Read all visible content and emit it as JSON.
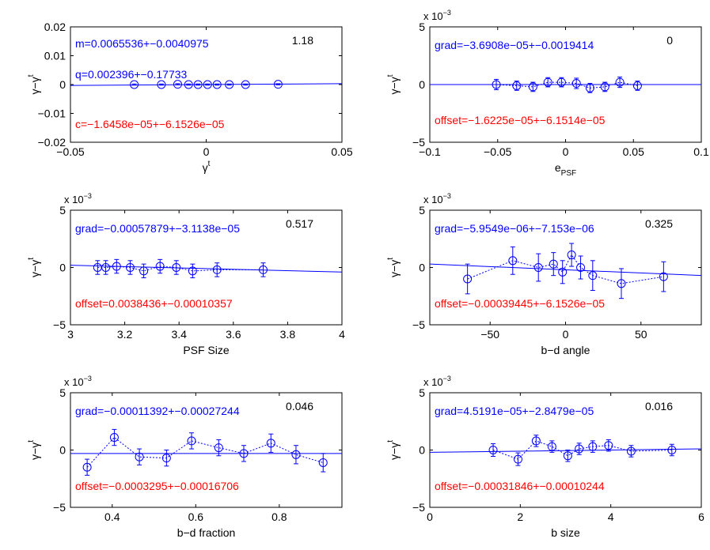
{
  "chart_data": [
    {
      "type": "scatter",
      "xlabel": "γ^t",
      "ylabel": "γ−γ^t",
      "xlim": [
        -0.05,
        0.05
      ],
      "ylim": [
        -0.02,
        0.02
      ],
      "xticks": [
        -0.05,
        0,
        0.05
      ],
      "xtick_labels": [
        "−0.05",
        "0",
        "0.05"
      ],
      "yticks": [
        -0.02,
        -0.01,
        0,
        0.01,
        0.02
      ],
      "ytick_labels": [
        "−0.02",
        "−0.01",
        "0",
        "0.01",
        "0.02"
      ],
      "exponent_label": "",
      "value_label": "1.18",
      "annotations": [
        {
          "text": "m=0.0065536+−0.0040975",
          "color": "#0000ff"
        },
        {
          "text": "q=0.002396+−0.17733",
          "color": "#0000ff"
        },
        {
          "text": "c=−1.6458e−05+−6.1526e−05",
          "color": "#ff0000"
        }
      ],
      "fit_line": {
        "x": [
          -0.05,
          0.05
        ],
        "y": [
          -0.0003,
          0.0003
        ]
      },
      "connect_points": false,
      "points": {
        "x": [
          -0.0265,
          -0.0165,
          -0.0105,
          -0.0065,
          -0.003,
          0.0005,
          0.004,
          0.0085,
          0.0145,
          0.0265
        ],
        "y": [
          0,
          0,
          0.0001,
          0,
          0,
          0,
          0,
          0,
          0,
          0.0001
        ],
        "err": [
          0.0002,
          0.0002,
          0.0002,
          0.0002,
          0.0002,
          0.0002,
          0.0002,
          0.0002,
          0.0002,
          0.0002
        ]
      }
    },
    {
      "type": "scatter",
      "xlabel": "e_PSF",
      "ylabel": "γ−γ^t",
      "xlim": [
        -0.1,
        0.1
      ],
      "ylim": [
        -5,
        5
      ],
      "xticks": [
        -0.1,
        -0.05,
        0,
        0.05,
        0.1
      ],
      "xtick_labels": [
        "−0.1",
        "−0.05",
        "0",
        "0.05",
        "0.1"
      ],
      "yticks": [
        -5,
        0,
        5
      ],
      "ytick_labels": [
        "−5",
        "0",
        "5"
      ],
      "exponent_label": "x 10−3",
      "value_label": "0",
      "annotations": [
        {
          "text": "grad=−3.6908e−05+−0.0019414",
          "color": "#0000ff"
        },
        {
          "text": "offset=−1.6225e−05+−6.1514e−05",
          "color": "#ff0000"
        }
      ],
      "fit_line": {
        "x": [
          -0.1,
          0.1
        ],
        "y": [
          0,
          0
        ]
      },
      "connect_points": true,
      "points": {
        "x": [
          -0.051,
          -0.036,
          -0.024,
          -0.013,
          -0.003,
          0.008,
          0.018,
          0.029,
          0.04,
          0.053
        ],
        "y": [
          0,
          -0.1,
          -0.2,
          0.2,
          0.2,
          0.1,
          -0.3,
          -0.2,
          0.2,
          -0.1
        ],
        "err": [
          0.45,
          0.4,
          0.4,
          0.4,
          0.4,
          0.45,
          0.4,
          0.4,
          0.45,
          0.4
        ]
      }
    },
    {
      "type": "scatter",
      "xlabel": "PSF Size",
      "ylabel": "γ−γ^t",
      "xlim": [
        3,
        4
      ],
      "ylim": [
        -5,
        5
      ],
      "xticks": [
        3,
        3.2,
        3.4,
        3.6,
        3.8,
        4
      ],
      "xtick_labels": [
        "3",
        "3.2",
        "3.4",
        "3.6",
        "3.8",
        "4"
      ],
      "yticks": [
        -5,
        0,
        5
      ],
      "ytick_labels": [
        "−5",
        "0",
        "5"
      ],
      "exponent_label": "x 10−3",
      "value_label": "0.517",
      "annotations": [
        {
          "text": "grad=−0.00057879+−3.1138e−05",
          "color": "#0000ff"
        },
        {
          "text": "offset=0.0038436+−0.00010357",
          "color": "#ff0000"
        }
      ],
      "fit_line": {
        "x": [
          3,
          4
        ],
        "y": [
          0.2,
          -0.4
        ]
      },
      "connect_points": true,
      "points": {
        "x": [
          3.1,
          3.13,
          3.17,
          3.22,
          3.27,
          3.33,
          3.39,
          3.45,
          3.54,
          3.71
        ],
        "y": [
          0,
          0,
          0.1,
          0,
          -0.3,
          0.1,
          0,
          -0.3,
          -0.2,
          -0.2
        ],
        "err": [
          0.6,
          0.6,
          0.6,
          0.6,
          0.6,
          0.6,
          0.6,
          0.6,
          0.6,
          0.6
        ]
      }
    },
    {
      "type": "scatter",
      "xlabel": "b−d angle",
      "ylabel": "γ−γ^t",
      "xlim": [
        -90,
        90
      ],
      "ylim": [
        -5,
        5
      ],
      "xticks": [
        -50,
        0,
        50
      ],
      "xtick_labels": [
        "−50",
        "0",
        "50"
      ],
      "yticks": [
        -5,
        0,
        5
      ],
      "ytick_labels": [
        "−5",
        "0",
        "5"
      ],
      "exponent_label": "x 10−3",
      "value_label": "0.325",
      "annotations": [
        {
          "text": "grad=−5.9549e−06+−7.153e−06",
          "color": "#0000ff"
        },
        {
          "text": "offset=−0.00039445+−6.1526e−05",
          "color": "#ff0000"
        }
      ],
      "fit_line": {
        "x": [
          -90,
          90
        ],
        "y": [
          0.3,
          -0.7
        ]
      },
      "connect_points": true,
      "points": {
        "x": [
          -65,
          -35,
          -18,
          -8,
          -2,
          4,
          10,
          18,
          37,
          65
        ],
        "y": [
          -1,
          0.6,
          0,
          0.3,
          -0.4,
          1.1,
          0,
          -0.7,
          -1.4,
          -0.8
        ],
        "err": [
          1.3,
          1.2,
          1.2,
          1.0,
          1.0,
          1.0,
          1.0,
          1.3,
          1.3,
          1.3
        ]
      }
    },
    {
      "type": "scatter",
      "xlabel": "b−d fraction",
      "ylabel": "γ−γ^t",
      "xlim": [
        0.3,
        0.95
      ],
      "ylim": [
        -5,
        5
      ],
      "xticks": [
        0.4,
        0.6,
        0.8
      ],
      "xtick_labels": [
        "0.4",
        "0.6",
        "0.8"
      ],
      "yticks": [
        -5,
        0,
        5
      ],
      "ytick_labels": [
        "−5",
        "0",
        "5"
      ],
      "exponent_label": "x 10−3",
      "value_label": "0.046",
      "annotations": [
        {
          "text": "grad=−0.00011392+−0.00027244",
          "color": "#0000ff"
        },
        {
          "text": "offset=−0.0003295+−0.00016706",
          "color": "#ff0000"
        }
      ],
      "fit_line": {
        "x": [
          0.3,
          0.95
        ],
        "y": [
          -0.3,
          -0.3
        ]
      },
      "connect_points": true,
      "points": {
        "x": [
          0.34,
          0.405,
          0.465,
          0.53,
          0.59,
          0.655,
          0.715,
          0.78,
          0.84,
          0.905
        ],
        "y": [
          -1.5,
          1.1,
          -0.6,
          -0.7,
          0.8,
          0.2,
          -0.3,
          0.6,
          -0.4,
          -1.1
        ],
        "err": [
          0.7,
          0.7,
          0.7,
          0.7,
          0.7,
          0.7,
          0.7,
          0.8,
          0.8,
          0.8
        ]
      }
    },
    {
      "type": "scatter",
      "xlabel": "b size",
      "ylabel": "γ−γ^t",
      "xlim": [
        0,
        6
      ],
      "ylim": [
        -5,
        5
      ],
      "xticks": [
        0,
        2,
        4,
        6
      ],
      "xtick_labels": [
        "0",
        "2",
        "4",
        "6"
      ],
      "yticks": [
        -5,
        0,
        5
      ],
      "ytick_labels": [
        "−5",
        "0",
        "5"
      ],
      "exponent_label": "x 10−3",
      "value_label": "0.016",
      "annotations": [
        {
          "text": "grad=4.5191e−05+−2.8479e−05",
          "color": "#0000ff"
        },
        {
          "text": "offset=−0.00031846+−0.00010244",
          "color": "#ff0000"
        }
      ],
      "fit_line": {
        "x": [
          0,
          6
        ],
        "y": [
          -0.2,
          0.1
        ]
      },
      "connect_points": true,
      "points": {
        "x": [
          1.4,
          1.95,
          2.35,
          2.7,
          3.05,
          3.3,
          3.6,
          3.95,
          4.45,
          5.35
        ],
        "y": [
          0,
          -0.8,
          0.8,
          0.3,
          -0.5,
          0.1,
          0.3,
          0.4,
          -0.1,
          0
        ],
        "err": [
          0.55,
          0.55,
          0.5,
          0.5,
          0.5,
          0.5,
          0.5,
          0.5,
          0.5,
          0.5
        ]
      }
    }
  ]
}
